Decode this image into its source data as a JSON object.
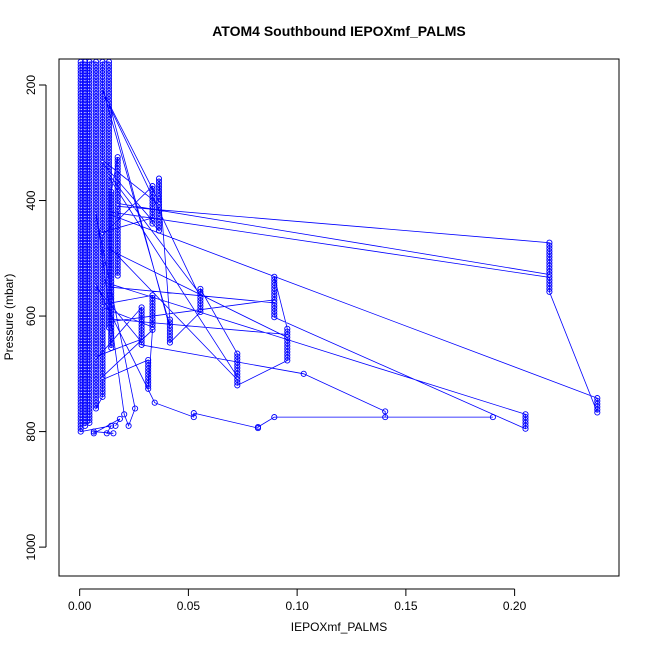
{
  "chart_data": {
    "type": "scatter",
    "title": "ATOM4 Southbound IEPOXmf_PALMS",
    "xlabel": "IEPOXmf_PALMS",
    "ylabel": "Pressure (mbar)",
    "xlim": [
      -0.0095,
      0.248
    ],
    "ylim": [
      1050,
      155
    ],
    "y_inverted": true,
    "x_ticks": [
      0.0,
      0.05,
      0.1,
      0.15,
      0.2
    ],
    "x_tick_labels": [
      "0.00",
      "0.05",
      "0.10",
      "0.15",
      "0.20"
    ],
    "y_ticks": [
      200,
      400,
      600,
      800,
      1000
    ],
    "y_tick_labels": [
      "200",
      "400",
      "600",
      "800",
      "1000"
    ],
    "grid": false,
    "marker": "open-circle",
    "connect_points": true,
    "color": "#0000ff",
    "columns": [
      {
        "x": 0.216,
        "p_top": 473,
        "p_bottom": 558
      },
      {
        "x": 0.238,
        "p_top": 742,
        "p_bottom": 768
      },
      {
        "x": 0.205,
        "p_top": 770,
        "p_bottom": 797
      },
      {
        "x": 0.0895,
        "p_top": 532,
        "p_bottom": 605
      },
      {
        "x": 0.0955,
        "p_top": 622,
        "p_bottom": 678
      },
      {
        "x": 0.0725,
        "p_top": 665,
        "p_bottom": 722
      },
      {
        "x": 0.0555,
        "p_top": 553,
        "p_bottom": 597
      },
      {
        "x": 0.0415,
        "p_top": 606,
        "p_bottom": 648
      },
      {
        "x": 0.0365,
        "p_top": 362,
        "p_bottom": 455
      },
      {
        "x": 0.0335,
        "p_top": 375,
        "p_bottom": 443
      },
      {
        "x": 0.0335,
        "p_top": 564,
        "p_bottom": 628
      },
      {
        "x": 0.0315,
        "p_top": 676,
        "p_bottom": 728
      },
      {
        "x": 0.0285,
        "p_top": 585,
        "p_bottom": 652
      },
      {
        "x": 0.0175,
        "p_top": 325,
        "p_bottom": 530
      },
      {
        "x": 0.0145,
        "p_top": 385,
        "p_bottom": 655
      },
      {
        "x": 0.0135,
        "p_top": 160,
        "p_bottom": 620
      },
      {
        "x": 0.0105,
        "p_top": 160,
        "p_bottom": 740
      },
      {
        "x": 0.0075,
        "p_top": 160,
        "p_bottom": 760
      },
      {
        "x": 0.0045,
        "p_top": 160,
        "p_bottom": 785
      },
      {
        "x": 0.0025,
        "p_top": 160,
        "p_bottom": 790
      },
      {
        "x": 0.0005,
        "p_top": 160,
        "p_bottom": 803
      }
    ],
    "points": [
      {
        "x": 0.103,
        "y": 700
      },
      {
        "x": 0.1405,
        "y": 765
      },
      {
        "x": 0.1405,
        "y": 775
      },
      {
        "x": 0.19,
        "y": 775
      },
      {
        "x": 0.0895,
        "y": 775
      },
      {
        "x": 0.082,
        "y": 792
      },
      {
        "x": 0.082,
        "y": 794
      },
      {
        "x": 0.0525,
        "y": 768
      },
      {
        "x": 0.0525,
        "y": 775
      },
      {
        "x": 0.0345,
        "y": 750
      },
      {
        "x": 0.0255,
        "y": 760
      },
      {
        "x": 0.0145,
        "y": 790
      },
      {
        "x": 0.0125,
        "y": 803
      },
      {
        "x": 0.0155,
        "y": 803
      },
      {
        "x": 0.0065,
        "y": 800
      },
      {
        "x": 0.0065,
        "y": 803
      },
      {
        "x": 0.0225,
        "y": 790
      },
      {
        "x": 0.0205,
        "y": 770
      },
      {
        "x": 0.0185,
        "y": 778
      },
      {
        "x": 0.0165,
        "y": 790
      }
    ]
  }
}
